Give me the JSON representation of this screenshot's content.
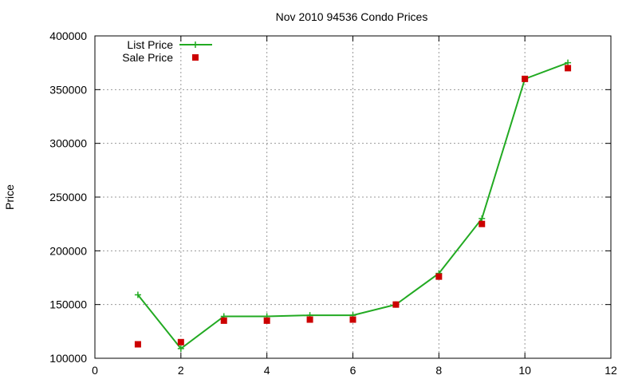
{
  "chart_data": {
    "type": "line",
    "title": "Nov 2010 94536 Condo Prices",
    "xlabel": "",
    "ylabel": "Price",
    "xlim": [
      0,
      12
    ],
    "ylim": [
      100000,
      400000
    ],
    "x_ticks": [
      "0",
      "2",
      "4",
      "6",
      "8",
      "10",
      "12"
    ],
    "y_ticks": [
      "100000",
      "150000",
      "200000",
      "250000",
      "300000",
      "350000",
      "400000"
    ],
    "grid": true,
    "legend_position": "top-left",
    "series": [
      {
        "name": "List Price",
        "style": "line-with-plus-markers",
        "color": "#22aa22",
        "x": [
          1,
          2,
          3,
          4,
          5,
          6,
          7,
          8,
          9,
          10,
          11
        ],
        "values": [
          159000,
          109000,
          139000,
          139000,
          140000,
          140000,
          150000,
          179000,
          230000,
          360000,
          375000
        ]
      },
      {
        "name": "Sale Price",
        "style": "square-markers",
        "color": "#cc0000",
        "x": [
          1,
          2,
          3,
          4,
          5,
          6,
          7,
          8,
          9,
          10,
          11
        ],
        "values": [
          113000,
          115000,
          135000,
          135000,
          136000,
          136000,
          150000,
          176000,
          225000,
          360000,
          370000
        ]
      }
    ]
  }
}
